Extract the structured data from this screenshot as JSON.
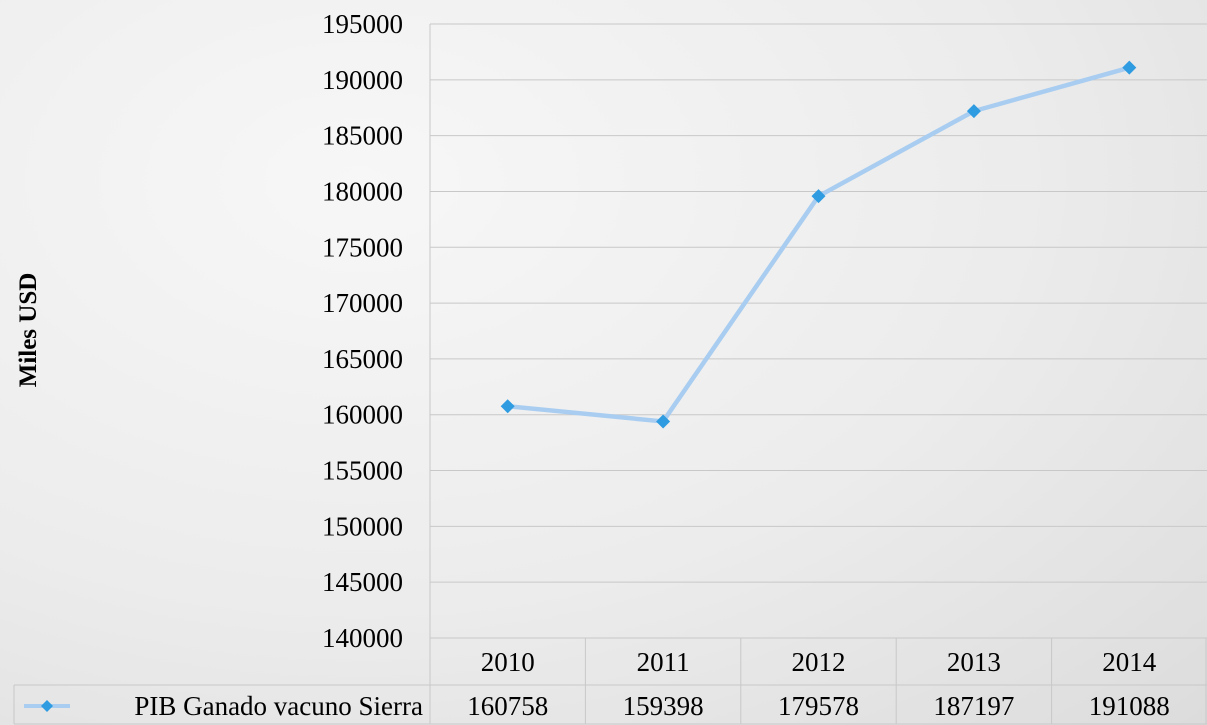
{
  "chart_data": {
    "type": "line",
    "categories": [
      "2010",
      "2011",
      "2012",
      "2013",
      "2014"
    ],
    "series": [
      {
        "name": "PIB Ganado vacuno Sierra",
        "values": [
          160758,
          159398,
          179578,
          187197,
          191088
        ]
      }
    ],
    "ylabel": "Miles USD",
    "xlabel": "",
    "ylim": [
      140000,
      195000
    ],
    "yticks": [
      "140000",
      "145000",
      "150000",
      "155000",
      "160000",
      "165000",
      "170000",
      "175000",
      "180000",
      "185000",
      "190000",
      "195000"
    ],
    "grid": true,
    "data_table": true,
    "legend": "data-table",
    "colors": {
      "line": "#a9cdf0",
      "marker": "#2f9be0",
      "grid": "#c8c8c8",
      "table_border": "#c8c8c8"
    }
  }
}
